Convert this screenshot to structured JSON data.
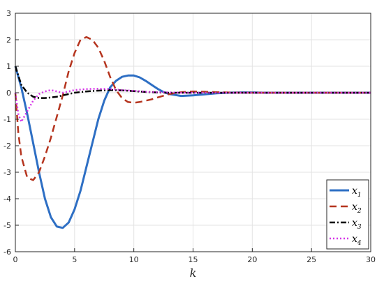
{
  "chart_data": {
    "type": "line",
    "title": "",
    "xlabel": "k",
    "ylabel": "",
    "xlim": [
      0,
      30
    ],
    "ylim": [
      -6,
      3
    ],
    "xticks": [
      0,
      5,
      10,
      15,
      20,
      25,
      30
    ],
    "yticks": [
      3,
      2,
      1,
      0,
      -1,
      -2,
      -3,
      -4,
      -5,
      -6
    ],
    "grid": true,
    "legend_position": "bottom-right",
    "series": [
      {
        "name": "x1",
        "label_main": "x",
        "label_sub": "1",
        "color": "#2e6fc4",
        "dash": "solid",
        "x": [
          0,
          0.5,
          1,
          1.5,
          2,
          2.5,
          3,
          3.5,
          4,
          4.5,
          5,
          5.5,
          6,
          6.5,
          7,
          7.5,
          8,
          8.5,
          9,
          9.5,
          10,
          10.5,
          11,
          11.5,
          12,
          12.5,
          13,
          14,
          15,
          16,
          17,
          18,
          19,
          20,
          21,
          22,
          23,
          24,
          25,
          26,
          27,
          28,
          29,
          30
        ],
        "y": [
          1.0,
          0.2,
          -0.8,
          -1.9,
          -3.0,
          -4.0,
          -4.7,
          -5.05,
          -5.1,
          -4.9,
          -4.4,
          -3.7,
          -2.8,
          -1.9,
          -1.0,
          -0.3,
          0.2,
          0.45,
          0.6,
          0.65,
          0.65,
          0.58,
          0.45,
          0.3,
          0.15,
          0.03,
          -0.05,
          -0.12,
          -0.1,
          -0.06,
          -0.02,
          0.0,
          0.01,
          0.01,
          0.0,
          0.0,
          0.0,
          0.0,
          0.0,
          0.0,
          0.0,
          0.0,
          0.0,
          0.0
        ]
      },
      {
        "name": "x2",
        "label_main": "x",
        "label_sub": "2",
        "color": "#b5341e",
        "dash": "dashed",
        "x": [
          0,
          0.25,
          0.5,
          1,
          1.5,
          2,
          2.5,
          3,
          3.5,
          4,
          4.5,
          5,
          5.5,
          6,
          6.5,
          7,
          7.5,
          8,
          8.5,
          9,
          9.5,
          10,
          10.5,
          11,
          11.5,
          12,
          13,
          14,
          15,
          16,
          17,
          18,
          19,
          20,
          22,
          24,
          26,
          28,
          30
        ],
        "y": [
          0.0,
          -1.5,
          -2.4,
          -3.2,
          -3.3,
          -3.0,
          -2.4,
          -1.7,
          -0.9,
          -0.1,
          0.8,
          1.5,
          2.0,
          2.1,
          2.0,
          1.7,
          1.2,
          0.6,
          0.1,
          -0.2,
          -0.35,
          -0.38,
          -0.35,
          -0.3,
          -0.25,
          -0.18,
          -0.05,
          0.02,
          0.05,
          0.04,
          0.02,
          0.01,
          0.0,
          0.0,
          0.0,
          0.0,
          0.0,
          0.0,
          0.0
        ]
      },
      {
        "name": "x3",
        "label_main": "x",
        "label_sub": "3",
        "color": "#000000",
        "dash": "dashdot",
        "x": [
          0,
          0.5,
          1,
          1.5,
          2,
          2.5,
          3,
          3.5,
          4,
          5,
          6,
          7,
          8,
          9,
          10,
          11,
          12,
          13,
          14,
          15,
          16,
          18,
          20,
          22,
          24,
          26,
          28,
          30
        ],
        "y": [
          1.0,
          0.3,
          0.0,
          -0.15,
          -0.2,
          -0.2,
          -0.18,
          -0.15,
          -0.1,
          0.0,
          0.05,
          0.08,
          0.1,
          0.09,
          0.06,
          0.03,
          0.01,
          0.0,
          0.0,
          0.0,
          0.0,
          0.0,
          0.0,
          0.0,
          0.0,
          0.0,
          0.0,
          0.0
        ]
      },
      {
        "name": "x4",
        "label_main": "x",
        "label_sub": "4",
        "color": "#d633e8",
        "dash": "dotted",
        "x": [
          0,
          0.25,
          0.5,
          1,
          1.5,
          2,
          2.5,
          3,
          3.5,
          4,
          4.5,
          5,
          6,
          7,
          8,
          9,
          10,
          11,
          12,
          13,
          14,
          15,
          16,
          18,
          20,
          22,
          24,
          26,
          28,
          30
        ],
        "y": [
          0.0,
          -0.8,
          -1.1,
          -0.7,
          -0.3,
          -0.05,
          0.05,
          0.1,
          0.05,
          0.0,
          0.05,
          0.1,
          0.14,
          0.15,
          0.14,
          0.1,
          0.07,
          0.04,
          0.02,
          0.01,
          0.0,
          0.0,
          0.0,
          0.0,
          0.0,
          0.0,
          0.0,
          0.0,
          0.0,
          0.0
        ]
      }
    ]
  }
}
